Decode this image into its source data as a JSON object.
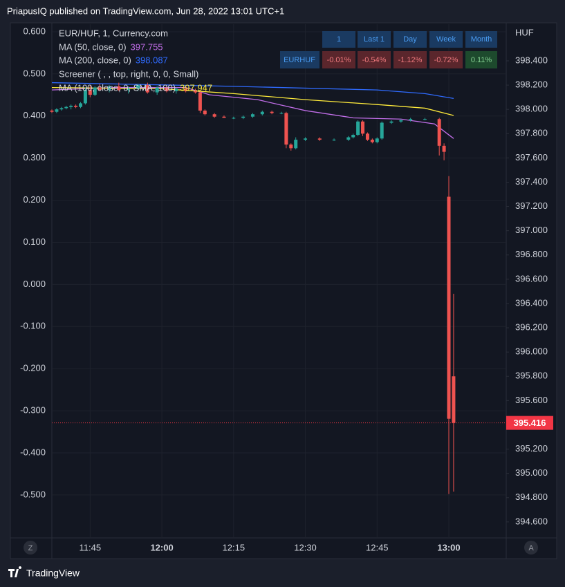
{
  "header": "PriapusIQ published on TradingView.com, Jun 28, 2022 13:01 UTC+1",
  "brand": "TradingView",
  "buttons": {
    "left": "Z",
    "right": "A"
  },
  "screener": {
    "columns": [
      "1",
      "Last 1",
      "Day",
      "Week",
      "Month"
    ],
    "row": {
      "symbol": "EURHUF",
      "cells": [
        "-0.01%",
        "-0.54%",
        "-1.12%",
        "-0.72%",
        "0.11%"
      ]
    }
  },
  "chart_data": {
    "type": "candlestick",
    "title": "EUR/HUF, 1, Currency.com",
    "y_label": "HUF",
    "up_color": "#26a69a",
    "down_color": "#ef5350",
    "x": [
      "11:37",
      "11:38",
      "11:39",
      "11:40",
      "11:41",
      "11:42",
      "11:43",
      "11:44",
      "11:45",
      "11:46",
      "11:47",
      "11:49",
      "11:51",
      "11:53",
      "11:55",
      "11:57",
      "11:59",
      "12:01",
      "12:03",
      "12:05",
      "12:07",
      "12:08",
      "12:09",
      "12:11",
      "12:13",
      "12:15",
      "12:17",
      "12:19",
      "12:21",
      "12:23",
      "12:25",
      "12:26",
      "12:27",
      "12:28",
      "12:30",
      "12:33",
      "12:36",
      "12:39",
      "12:40",
      "12:41",
      "12:42",
      "12:43",
      "12:44",
      "12:45",
      "12:46",
      "12:48",
      "12:50",
      "12:52",
      "12:55",
      "12:58",
      "12:59",
      "13:00",
      "13:01"
    ],
    "open": [
      397.99,
      397.98,
      398.0,
      398.01,
      398.02,
      398.03,
      398.02,
      398.05,
      398.16,
      398.12,
      398.18,
      398.16,
      398.19,
      398.16,
      398.17,
      398.2,
      398.14,
      398.18,
      398.15,
      398.17,
      398.15,
      398.14,
      397.99,
      397.96,
      397.94,
      397.93,
      397.93,
      397.94,
      397.96,
      397.98,
      397.97,
      397.97,
      397.71,
      397.68,
      397.75,
      397.76,
      397.75,
      397.75,
      397.77,
      397.79,
      397.9,
      397.8,
      397.75,
      397.73,
      397.76,
      397.89,
      397.9,
      397.91,
      397.92,
      397.92,
      397.7,
      397.28,
      395.8
    ],
    "high": [
      398.0,
      398.01,
      398.02,
      398.03,
      398.04,
      398.04,
      398.06,
      398.18,
      398.2,
      398.19,
      398.21,
      398.2,
      398.22,
      398.19,
      398.21,
      398.22,
      398.19,
      398.2,
      398.18,
      398.19,
      398.17,
      398.15,
      398.0,
      397.97,
      397.95,
      397.94,
      397.95,
      397.97,
      397.99,
      397.99,
      397.98,
      397.98,
      397.72,
      397.77,
      397.77,
      397.77,
      397.76,
      397.78,
      397.8,
      397.91,
      397.91,
      397.81,
      397.76,
      397.77,
      397.9,
      397.91,
      397.92,
      397.93,
      397.93,
      397.93,
      397.72,
      397.45,
      396.48
    ],
    "low": [
      397.97,
      397.97,
      397.99,
      398.0,
      398.0,
      398.01,
      398.01,
      398.04,
      398.1,
      398.11,
      398.15,
      398.14,
      398.15,
      398.13,
      398.15,
      398.13,
      398.12,
      398.14,
      398.13,
      398.14,
      398.13,
      397.97,
      397.95,
      397.93,
      397.93,
      397.92,
      397.92,
      397.93,
      397.95,
      397.96,
      397.96,
      397.68,
      397.66,
      397.67,
      397.74,
      397.74,
      397.74,
      397.74,
      397.76,
      397.78,
      397.78,
      397.74,
      397.72,
      397.72,
      397.75,
      397.88,
      397.89,
      397.9,
      397.91,
      397.62,
      397.58,
      394.83,
      394.85
    ],
    "close": [
      397.98,
      398.0,
      398.01,
      398.02,
      398.03,
      398.02,
      398.05,
      398.16,
      398.12,
      398.18,
      398.16,
      398.19,
      398.16,
      398.17,
      398.2,
      398.14,
      398.18,
      398.15,
      398.17,
      398.15,
      398.14,
      397.99,
      397.96,
      397.94,
      397.93,
      397.93,
      397.94,
      397.96,
      397.98,
      397.97,
      397.97,
      397.71,
      397.68,
      397.75,
      397.76,
      397.75,
      397.75,
      397.77,
      397.79,
      397.9,
      397.8,
      397.75,
      397.73,
      397.76,
      397.89,
      397.9,
      397.91,
      397.92,
      397.92,
      397.7,
      397.65,
      395.45,
      395.416
    ],
    "series": [
      {
        "name": "MA (50, close, 0)",
        "color": "#c16ee8",
        "last": 397.755,
        "x": [
          "11:37",
          "11:50",
          "12:05",
          "12:10",
          "12:20",
          "12:30",
          "12:40",
          "12:50",
          "12:57",
          "13:01"
        ],
        "values": [
          398.16,
          398.18,
          398.18,
          398.12,
          398.08,
          397.99,
          397.93,
          397.92,
          397.88,
          397.76
        ]
      },
      {
        "name": "MA (200, close, 0)",
        "color": "#2f6bff",
        "last": 398.087,
        "x": [
          "11:37",
          "12:15",
          "12:45",
          "12:55",
          "13:01"
        ],
        "values": [
          398.22,
          398.19,
          398.16,
          398.13,
          398.09
        ]
      },
      {
        "name": "MA (100, close, 0, SMA, 100)",
        "color": "#ffeb3b",
        "last": 397.947,
        "x": [
          "11:37",
          "12:00",
          "12:15",
          "12:30",
          "12:45",
          "12:55",
          "13:01"
        ],
        "values": [
          398.18,
          398.17,
          398.13,
          398.08,
          398.04,
          398.01,
          397.95
        ]
      }
    ],
    "screener_label": "Screener ( , , top, right, 0, 0, Small)",
    "xlim": [
      "11:37",
      "13:12"
    ],
    "xticks": [
      "11:45",
      "12:00",
      "12:15",
      "12:30",
      "12:45",
      "13:00"
    ],
    "ylim": [
      394.468,
      398.702
    ],
    "yticks": [
      {
        "value": 398.4,
        "label": "398.400"
      },
      {
        "value": 398.2,
        "label": "398.200"
      },
      {
        "value": 398.0,
        "label": "398.000"
      },
      {
        "value": 397.8,
        "label": "397.800"
      },
      {
        "value": 397.6,
        "label": "397.600"
      },
      {
        "value": 397.4,
        "label": "397.400"
      },
      {
        "value": 397.2,
        "label": "397.200"
      },
      {
        "value": 397.0,
        "label": "397.000"
      },
      {
        "value": 396.8,
        "label": "396.800"
      },
      {
        "value": 396.6,
        "label": "396.600"
      },
      {
        "value": 396.4,
        "label": "396.400"
      },
      {
        "value": 396.2,
        "label": "396.200"
      },
      {
        "value": 396.0,
        "label": "396.000"
      },
      {
        "value": 395.8,
        "label": "395.800"
      },
      {
        "value": 395.6,
        "label": "395.600"
      },
      {
        "value": 395.4,
        "label": "395.400"
      },
      {
        "value": 395.2,
        "label": "395.200"
      },
      {
        "value": 395.0,
        "label": "395.000"
      },
      {
        "value": 394.8,
        "label": "394.800"
      },
      {
        "value": 394.6,
        "label": "394.600"
      }
    ],
    "y2lim": [
      -0.602,
      0.618
    ],
    "y2ticks": [
      {
        "value": 0.6,
        "label": "0.600"
      },
      {
        "value": 0.5,
        "label": "0.500"
      },
      {
        "value": 0.4,
        "label": "0.400"
      },
      {
        "value": 0.3,
        "label": "0.300"
      },
      {
        "value": 0.2,
        "label": "0.200"
      },
      {
        "value": 0.1,
        "label": "0.100"
      },
      {
        "value": 0,
        "label": "0.000"
      },
      {
        "value": -0.1,
        "label": "-0.100"
      },
      {
        "value": -0.2,
        "label": "-0.200"
      },
      {
        "value": -0.3,
        "label": "-0.300"
      },
      {
        "value": -0.4,
        "label": "-0.400"
      },
      {
        "value": -0.5,
        "label": "-0.500"
      }
    ],
    "grid": true,
    "last_price_color": "#f23645"
  }
}
